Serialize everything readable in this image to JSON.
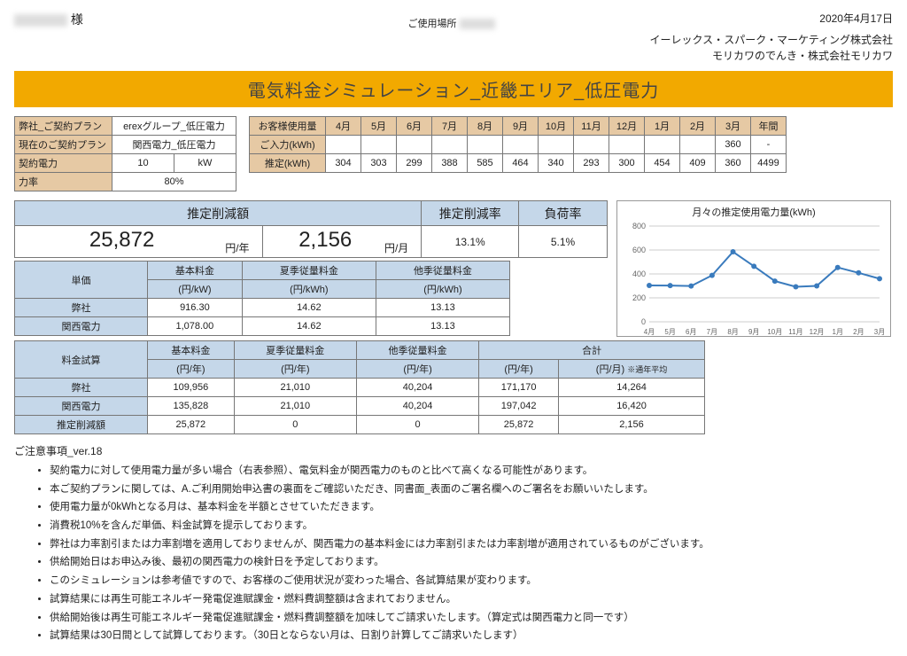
{
  "date": "2020年4月17日",
  "customer_suffix": "様",
  "use_place_label": "ご使用場所",
  "company1": "イーレックス・スパーク・マーケティング株式会社",
  "company2": "モリカワのでんき・株式会社モリカワ",
  "title": "電気料金シミュレーション_近畿エリア_低圧電力",
  "plan": {
    "row1_label": "弊社_ご契約プラン",
    "row1_value": "erexグループ_低圧電力",
    "row2_label": "現在のご契約プラン",
    "row2_value": "関西電力_低圧電力",
    "row3_label": "契約電力",
    "row3_value": "10",
    "row3_unit": "kW",
    "row4_label": "力率",
    "row4_value": "80%"
  },
  "usage": {
    "header": "お客様使用量",
    "months": [
      "4月",
      "5月",
      "6月",
      "7月",
      "8月",
      "9月",
      "10月",
      "11月",
      "12月",
      "1月",
      "2月",
      "3月",
      "年間"
    ],
    "input_label": "ご入力(kWh)",
    "input": [
      "",
      "",
      "",
      "",
      "",
      "",
      "",
      "",
      "",
      "",
      "",
      "360",
      "-"
    ],
    "est_label": "推定(kWh)",
    "est": [
      "304",
      "303",
      "299",
      "388",
      "585",
      "464",
      "340",
      "293",
      "300",
      "454",
      "409",
      "360",
      "4499"
    ],
    "est_nums": [
      304,
      303,
      299,
      388,
      585,
      464,
      340,
      293,
      300,
      454,
      409,
      360
    ]
  },
  "summary": {
    "h1": "推定削減額",
    "h2": "推定削減率",
    "h3": "負荷率",
    "v_year": "25,872",
    "u_year": "円/年",
    "v_month": "2,156",
    "u_month": "円/月",
    "rate": "13.1%",
    "load": "5.1%"
  },
  "chart": {
    "title": "月々の推定使用電力量(kWh)",
    "yticks": [
      0,
      200,
      400,
      600,
      800
    ],
    "xlabels": [
      "4月",
      "5月",
      "6月",
      "7月",
      "8月",
      "9月",
      "10月",
      "11月",
      "12月",
      "1月",
      "2月",
      "3月"
    ],
    "line_color": "#3a7bbd",
    "grid_color": "#cccccc",
    "text_color": "#666666"
  },
  "price": {
    "h0": "単価",
    "cols": [
      "基本料金",
      "夏季従量料金",
      "他季従量料金"
    ],
    "units": [
      "(円/kW)",
      "(円/kWh)",
      "(円/kWh)"
    ],
    "r1_label": "弊社",
    "r1": [
      "916.30",
      "14.62",
      "13.13"
    ],
    "r2_label": "関西電力",
    "r2": [
      "1,078.00",
      "14.62",
      "13.13"
    ]
  },
  "calc": {
    "h0": "料金試算",
    "cols": [
      "基本料金",
      "夏季従量料金",
      "他季従量料金",
      "合計"
    ],
    "units": [
      "(円/年)",
      "(円/年)",
      "(円/年)",
      "(円/年)",
      "(円/月)"
    ],
    "unit_note": "※通年平均",
    "r1_label": "弊社",
    "r1": [
      "109,956",
      "21,010",
      "40,204",
      "171,170",
      "14,264"
    ],
    "r2_label": "関西電力",
    "r2": [
      "135,828",
      "21,010",
      "40,204",
      "197,042",
      "16,420"
    ],
    "r3_label": "推定削減額",
    "r3": [
      "25,872",
      "0",
      "0",
      "25,872",
      "2,156"
    ]
  },
  "notes_title": "ご注意事項_ver.18",
  "notes": [
    "契約電力に対して使用電力量が多い場合（右表参照）、電気料金が関西電力のものと比べて高くなる可能性があります。",
    "本ご契約プランに関しては、A.ご利用開始申込書の裏面をご確認いただき、同書面_表面のご署名欄へのご署名をお願いいたします。",
    "使用電力量が0kWhとなる月は、基本料金を半額とさせていただきます。",
    "消費税10%を含んだ単価、料金試算を提示しております。",
    "弊社は力率割引または力率割増を適用しておりませんが、関西電力の基本料金には力率割引または力率割増が適用されているものがございます。",
    "供給開始日はお申込み後、最初の関西電力の検針日を予定しております。",
    "このシミュレーションは参考値ですので、お客様のご使用状況が変わった場合、各試算結果が変わります。",
    "試算結果には再生可能エネルギー発電促進賦課金・燃料費調整額は含まれておりません。",
    "供給開始後は再生可能エネルギー発電促進賦課金・燃料費調整額を加味してご請求いたします。（算定式は関西電力と同一です）",
    "試算結果は30日間として試算しております。（30日とならない月は、日割り計算してご請求いたします）"
  ]
}
